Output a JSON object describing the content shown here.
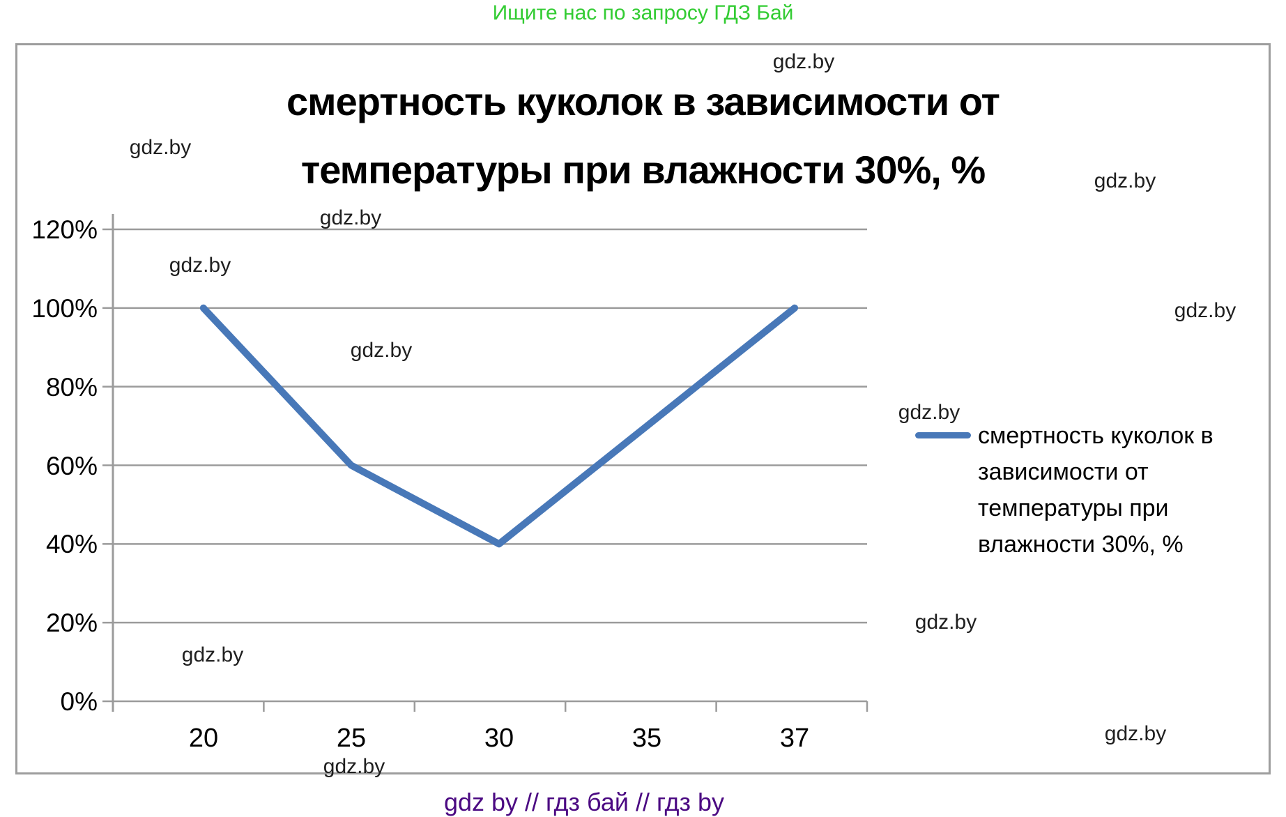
{
  "header": {
    "promo_text": "Ищите нас по запросу ГДЗ Бай",
    "promo_color": "#33CC33"
  },
  "watermark": {
    "label": "gdz.by"
  },
  "footer": {
    "text": "gdz by  //  гдз бай  //  гдз by",
    "color": "#4B0982"
  },
  "chart_data": {
    "type": "line",
    "title_line1": "смертность куколок в зависимости от",
    "title_line2": "температуры при влажности 30%, %",
    "title": "смертность куколок в зависимости от температуры при влажности 30%, %",
    "categories": [
      "20",
      "25",
      "30",
      "35",
      "37"
    ],
    "series": [
      {
        "name": "смертность куколок в зависимости от температуры при влажности 30%, %",
        "values": [
          100,
          60,
          40,
          70,
          100
        ]
      }
    ],
    "xlabel": "",
    "ylabel": "",
    "ylim": [
      0,
      120
    ],
    "y_tick_labels": [
      "120%",
      "100%",
      "80%",
      "60%",
      "40%",
      "20%",
      "0%"
    ],
    "y_tick_step": 20,
    "grid": "horizontal-on",
    "legend_position": "right",
    "legend_lines": [
      "смертность куколок в",
      "зависимости от",
      "температуры при",
      "влажности 30%, %"
    ],
    "line_color": "#4878B8",
    "axis_color": "#9B9B9B"
  }
}
